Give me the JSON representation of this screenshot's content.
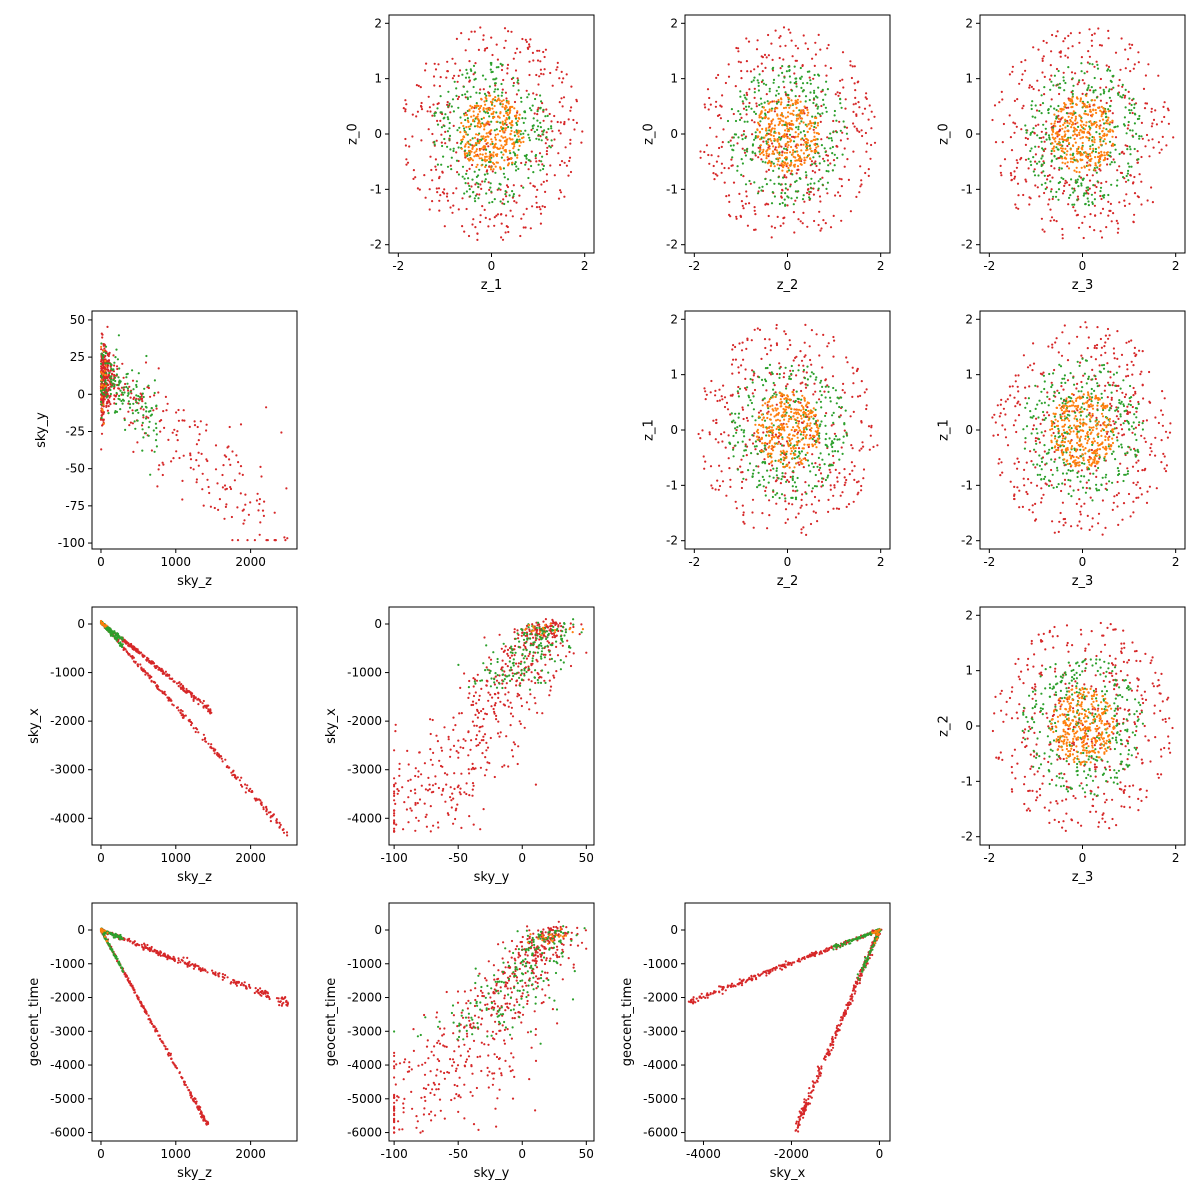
{
  "figure": {
    "title": "",
    "colors": {
      "orange": "#ff7f0e",
      "green": "#2ca02c",
      "red": "#d62728",
      "axis": "#000000"
    }
  },
  "chart_data": [
    {
      "id": "z1_z0",
      "type": "scatter",
      "xlabel": "z_1",
      "ylabel": "z_0",
      "xlim": [
        -2.2,
        2.2
      ],
      "ylim": [
        -2.15,
        2.15
      ],
      "xticks": [
        "-2",
        "0",
        "2"
      ],
      "yticks": [
        "-2",
        "-1",
        "0",
        "1",
        "2"
      ],
      "xtick_values": [
        -2,
        0,
        2
      ],
      "ytick_values": [
        -2,
        -1,
        0,
        1,
        2
      ],
      "distribution": "disk",
      "radii": {
        "orange": 0.7,
        "green": 1.3,
        "red": 1.95
      },
      "counts": {
        "red": 420,
        "green": 330,
        "orange": 320
      }
    },
    {
      "id": "z2_z0",
      "type": "scatter",
      "xlabel": "z_2",
      "ylabel": "z_0",
      "xlim": [
        -2.2,
        2.2
      ],
      "ylim": [
        -2.15,
        2.15
      ],
      "xticks": [
        "-2",
        "0",
        "2"
      ],
      "yticks": [
        "-2",
        "-1",
        "0",
        "1",
        "2"
      ],
      "xtick_values": [
        -2,
        0,
        2
      ],
      "ytick_values": [
        -2,
        -1,
        0,
        1,
        2
      ],
      "distribution": "disk",
      "radii": {
        "orange": 0.7,
        "green": 1.3,
        "red": 1.95
      },
      "counts": {
        "red": 420,
        "green": 330,
        "orange": 320
      }
    },
    {
      "id": "z3_z0",
      "type": "scatter",
      "xlabel": "z_3",
      "ylabel": "z_0",
      "xlim": [
        -2.2,
        2.2
      ],
      "ylim": [
        -2.15,
        2.15
      ],
      "xticks": [
        "-2",
        "0",
        "2"
      ],
      "yticks": [
        "-2",
        "-1",
        "0",
        "1",
        "2"
      ],
      "xtick_values": [
        -2,
        0,
        2
      ],
      "ytick_values": [
        -2,
        -1,
        0,
        1,
        2
      ],
      "distribution": "disk",
      "radii": {
        "orange": 0.7,
        "green": 1.3,
        "red": 1.95
      },
      "counts": {
        "red": 420,
        "green": 330,
        "orange": 320
      }
    },
    {
      "id": "skyz_skyy",
      "type": "scatter",
      "xlabel": "sky_z",
      "ylabel": "sky_y",
      "xlim": [
        -120,
        2620
      ],
      "ylim": [
        -104,
        56
      ],
      "xticks": [
        "0",
        "1000",
        "2000"
      ],
      "yticks": [
        "-100",
        "-75",
        "-50",
        "-25",
        "0",
        "25",
        "50"
      ],
      "xtick_values": [
        0,
        1000,
        2000
      ],
      "ytick_values": [
        -100,
        -75,
        -50,
        -25,
        0,
        25,
        50
      ],
      "distribution": "skyz_skyy",
      "counts": {
        "red": 520,
        "green": 160,
        "orange": 20
      }
    },
    {
      "id": "z2_z1",
      "type": "scatter",
      "xlabel": "z_2",
      "ylabel": "z_1",
      "xlim": [
        -2.2,
        2.2
      ],
      "ylim": [
        -2.15,
        2.15
      ],
      "xticks": [
        "-2",
        "0",
        "2"
      ],
      "yticks": [
        "-2",
        "-1",
        "0",
        "1",
        "2"
      ],
      "xtick_values": [
        -2,
        0,
        2
      ],
      "ytick_values": [
        -2,
        -1,
        0,
        1,
        2
      ],
      "distribution": "disk",
      "radii": {
        "orange": 0.7,
        "green": 1.3,
        "red": 1.95
      },
      "counts": {
        "red": 420,
        "green": 330,
        "orange": 320
      }
    },
    {
      "id": "z3_z1",
      "type": "scatter",
      "xlabel": "z_3",
      "ylabel": "z_1",
      "xlim": [
        -2.2,
        2.2
      ],
      "ylim": [
        -2.15,
        2.15
      ],
      "xticks": [
        "-2",
        "0",
        "2"
      ],
      "yticks": [
        "-2",
        "-1",
        "0",
        "1",
        "2"
      ],
      "xtick_values": [
        -2,
        0,
        2
      ],
      "ytick_values": [
        -2,
        -1,
        0,
        1,
        2
      ],
      "distribution": "disk",
      "radii": {
        "orange": 0.7,
        "green": 1.3,
        "red": 1.95
      },
      "counts": {
        "red": 420,
        "green": 330,
        "orange": 320
      }
    },
    {
      "id": "skyz_skyx",
      "type": "scatter",
      "xlabel": "sky_z",
      "ylabel": "sky_x",
      "xlim": [
        -120,
        2620
      ],
      "ylim": [
        -4550,
        350
      ],
      "xticks": [
        "0",
        "1000",
        "2000"
      ],
      "yticks": [
        "-4000",
        "-3000",
        "-2000",
        "-1000",
        "0"
      ],
      "xtick_values": [
        0,
        1000,
        2000
      ],
      "ytick_values": [
        -4000,
        -3000,
        -2000,
        -1000,
        0
      ],
      "distribution": "skyz_skyx",
      "counts": {
        "red": 520,
        "green": 140,
        "orange": 20
      }
    },
    {
      "id": "skyy_skyx",
      "type": "scatter",
      "xlabel": "sky_y",
      "ylabel": "sky_x",
      "xlim": [
        -104,
        56
      ],
      "ylim": [
        -4550,
        350
      ],
      "xticks": [
        "-100",
        "-50",
        "0",
        "50"
      ],
      "yticks": [
        "-4000",
        "-3000",
        "-2000",
        "-1000",
        "0"
      ],
      "xtick_values": [
        -100,
        -50,
        0,
        50
      ],
      "ytick_values": [
        -4000,
        -3000,
        -2000,
        -1000,
        0
      ],
      "distribution": "skyy_skyx",
      "counts": {
        "red": 520,
        "green": 180,
        "orange": 20
      }
    },
    {
      "id": "z3_z2",
      "type": "scatter",
      "xlabel": "z_3",
      "ylabel": "z_2",
      "xlim": [
        -2.2,
        2.2
      ],
      "ylim": [
        -2.15,
        2.15
      ],
      "xticks": [
        "-2",
        "0",
        "2"
      ],
      "yticks": [
        "-2",
        "-1",
        "0",
        "1",
        "2"
      ],
      "xtick_values": [
        -2,
        0,
        2
      ],
      "ytick_values": [
        -2,
        -1,
        0,
        1,
        2
      ],
      "distribution": "disk",
      "radii": {
        "orange": 0.7,
        "green": 1.3,
        "red": 1.95
      },
      "counts": {
        "red": 420,
        "green": 330,
        "orange": 320
      }
    },
    {
      "id": "skyz_geotime",
      "type": "scatter",
      "xlabel": "sky_z",
      "ylabel": "geocent_time",
      "xlim": [
        -120,
        2620
      ],
      "ylim": [
        -6250,
        800
      ],
      "xticks": [
        "0",
        "1000",
        "2000"
      ],
      "yticks": [
        "-6000",
        "-5000",
        "-4000",
        "-3000",
        "-2000",
        "-1000",
        "0"
      ],
      "xtick_values": [
        0,
        1000,
        2000
      ],
      "ytick_values": [
        -6000,
        -5000,
        -4000,
        -3000,
        -2000,
        -1000,
        0
      ],
      "distribution": "skyz_geotime",
      "counts": {
        "red": 560,
        "green": 140,
        "orange": 20
      }
    },
    {
      "id": "skyy_geotime",
      "type": "scatter",
      "xlabel": "sky_y",
      "ylabel": "geocent_time",
      "xlim": [
        -104,
        56
      ],
      "ylim": [
        -6250,
        800
      ],
      "xticks": [
        "-100",
        "-50",
        "0",
        "50"
      ],
      "yticks": [
        "-6000",
        "-5000",
        "-4000",
        "-3000",
        "-2000",
        "-1000",
        "0"
      ],
      "xtick_values": [
        -100,
        -50,
        0,
        50
      ],
      "ytick_values": [
        -6000,
        -5000,
        -4000,
        -3000,
        -2000,
        -1000,
        0
      ],
      "distribution": "skyy_geotime",
      "counts": {
        "red": 560,
        "green": 200,
        "orange": 20
      }
    },
    {
      "id": "skyx_geotime",
      "type": "scatter",
      "xlabel": "sky_x",
      "ylabel": "geocent_time",
      "xlim": [
        -4420,
        240
      ],
      "ylim": [
        -6250,
        800
      ],
      "xticks": [
        "-4000",
        "-2000",
        "0"
      ],
      "yticks": [
        "-6000",
        "-5000",
        "-4000",
        "-3000",
        "-2000",
        "-1000",
        "0"
      ],
      "xtick_values": [
        -4000,
        -2000,
        0
      ],
      "ytick_values": [
        -6000,
        -5000,
        -4000,
        -3000,
        -2000,
        -1000,
        0
      ],
      "distribution": "skyx_geotime",
      "counts": {
        "red": 560,
        "green": 140,
        "orange": 20
      }
    }
  ]
}
